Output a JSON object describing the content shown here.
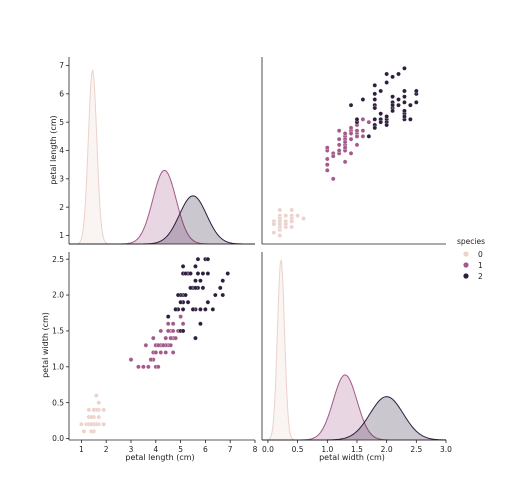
{
  "colors": {
    "species_0": "#ebd2cb",
    "species_1": "#a35a8a",
    "species_2": "#2d1e3e",
    "background": "#ffffff",
    "spine": "#222222"
  },
  "chart_data": {
    "type": "pairplot",
    "variables": [
      "petal length (cm)",
      "petal width (cm)"
    ],
    "hue": "species",
    "legend": {
      "title": "species",
      "entries": [
        "0",
        "1",
        "2"
      ],
      "placement": "right"
    },
    "grid": false,
    "panels": [
      {
        "row": 0,
        "col": 0,
        "type": "kde",
        "variable": "petal length (cm)",
        "xlim": [
          0.5,
          8
        ],
        "ylim": [
          0.7,
          7.3
        ],
        "xticks": [],
        "yticks": [
          1,
          2,
          3,
          4,
          5,
          6,
          7
        ],
        "ylabel": "petal length (cm)",
        "series": [
          {
            "species": "0",
            "peak_x": 1.45,
            "peak_y": 6.85,
            "spread": 0.17
          },
          {
            "species": "1",
            "peak_x": 4.35,
            "peak_y": 3.3,
            "spread": 0.47
          },
          {
            "species": "2",
            "peak_x": 5.5,
            "peak_y": 2.4,
            "spread": 0.55
          }
        ]
      },
      {
        "row": 0,
        "col": 1,
        "type": "scatter",
        "x_variable": "petal width (cm)",
        "y_variable": "petal length (cm)",
        "xlim": [
          -0.1,
          3.0
        ],
        "ylim": [
          0.7,
          7.3
        ],
        "xticks": [],
        "yticks": []
      },
      {
        "row": 1,
        "col": 0,
        "type": "scatter",
        "x_variable": "petal length (cm)",
        "y_variable": "petal width (cm)",
        "xlim": [
          0.5,
          8
        ],
        "ylim": [
          -0.02,
          2.6
        ],
        "xticks": [
          1,
          2,
          3,
          4,
          5,
          6,
          7,
          8
        ],
        "yticks": [
          "0.0",
          "0.5",
          "1.0",
          "1.5",
          "2.0",
          "2.5"
        ],
        "xlabel": "petal length (cm)",
        "ylabel": "petal width (cm)"
      },
      {
        "row": 1,
        "col": 1,
        "type": "kde",
        "variable": "petal width (cm)",
        "xlim": [
          -0.1,
          3.0
        ],
        "ylim": [
          0,
          2.6
        ],
        "xticks": [
          "0.0",
          "0.5",
          "1.0",
          "1.5",
          "2.0",
          "2.5",
          "3.0"
        ],
        "yticks": [],
        "xlabel": "petal width (cm)",
        "series": [
          {
            "species": "0",
            "peak_x": 0.22,
            "peak_y": 2.5,
            "spread": 0.06
          },
          {
            "species": "1",
            "peak_x": 1.3,
            "peak_y": 0.9,
            "spread": 0.2
          },
          {
            "species": "2",
            "peak_x": 2.0,
            "peak_y": 0.6,
            "spread": 0.28
          }
        ]
      }
    ],
    "points": [
      [
        1.4,
        0.2,
        0
      ],
      [
        1.4,
        0.2,
        0
      ],
      [
        1.3,
        0.2,
        0
      ],
      [
        1.5,
        0.2,
        0
      ],
      [
        1.4,
        0.2,
        0
      ],
      [
        1.7,
        0.4,
        0
      ],
      [
        1.4,
        0.3,
        0
      ],
      [
        1.5,
        0.2,
        0
      ],
      [
        1.4,
        0.2,
        0
      ],
      [
        1.5,
        0.1,
        0
      ],
      [
        1.5,
        0.2,
        0
      ],
      [
        1.6,
        0.2,
        0
      ],
      [
        1.4,
        0.1,
        0
      ],
      [
        1.1,
        0.1,
        0
      ],
      [
        1.2,
        0.2,
        0
      ],
      [
        1.5,
        0.4,
        0
      ],
      [
        1.3,
        0.4,
        0
      ],
      [
        1.4,
        0.3,
        0
      ],
      [
        1.7,
        0.3,
        0
      ],
      [
        1.5,
        0.3,
        0
      ],
      [
        1.7,
        0.2,
        0
      ],
      [
        1.5,
        0.4,
        0
      ],
      [
        1.0,
        0.2,
        0
      ],
      [
        1.7,
        0.5,
        0
      ],
      [
        1.9,
        0.2,
        0
      ],
      [
        1.6,
        0.2,
        0
      ],
      [
        1.6,
        0.4,
        0
      ],
      [
        1.5,
        0.2,
        0
      ],
      [
        1.4,
        0.2,
        0
      ],
      [
        1.6,
        0.2,
        0
      ],
      [
        1.6,
        0.2,
        0
      ],
      [
        1.5,
        0.4,
        0
      ],
      [
        1.5,
        0.1,
        0
      ],
      [
        1.4,
        0.2,
        0
      ],
      [
        1.5,
        0.2,
        0
      ],
      [
        1.2,
        0.2,
        0
      ],
      [
        1.3,
        0.2,
        0
      ],
      [
        1.4,
        0.1,
        0
      ],
      [
        1.3,
        0.2,
        0
      ],
      [
        1.5,
        0.2,
        0
      ],
      [
        1.3,
        0.3,
        0
      ],
      [
        1.3,
        0.3,
        0
      ],
      [
        1.3,
        0.2,
        0
      ],
      [
        1.6,
        0.6,
        0
      ],
      [
        1.9,
        0.4,
        0
      ],
      [
        1.4,
        0.3,
        0
      ],
      [
        1.6,
        0.2,
        0
      ],
      [
        1.4,
        0.2,
        0
      ],
      [
        1.5,
        0.2,
        0
      ],
      [
        1.4,
        0.2,
        0
      ],
      [
        4.7,
        1.4,
        1
      ],
      [
        4.5,
        1.5,
        1
      ],
      [
        4.9,
        1.5,
        1
      ],
      [
        4.0,
        1.3,
        1
      ],
      [
        4.6,
        1.5,
        1
      ],
      [
        4.5,
        1.3,
        1
      ],
      [
        4.7,
        1.6,
        1
      ],
      [
        3.3,
        1.0,
        1
      ],
      [
        4.6,
        1.3,
        1
      ],
      [
        3.9,
        1.4,
        1
      ],
      [
        3.5,
        1.0,
        1
      ],
      [
        4.2,
        1.5,
        1
      ],
      [
        4.0,
        1.0,
        1
      ],
      [
        4.7,
        1.4,
        1
      ],
      [
        3.6,
        1.3,
        1
      ],
      [
        4.4,
        1.4,
        1
      ],
      [
        4.5,
        1.5,
        1
      ],
      [
        4.1,
        1.0,
        1
      ],
      [
        4.5,
        1.5,
        1
      ],
      [
        3.9,
        1.1,
        1
      ],
      [
        4.8,
        1.8,
        1
      ],
      [
        4.0,
        1.3,
        1
      ],
      [
        4.9,
        1.5,
        1
      ],
      [
        4.7,
        1.2,
        1
      ],
      [
        4.3,
        1.3,
        1
      ],
      [
        4.4,
        1.4,
        1
      ],
      [
        4.8,
        1.4,
        1
      ],
      [
        5.0,
        1.7,
        1
      ],
      [
        4.5,
        1.5,
        1
      ],
      [
        3.5,
        1.0,
        1
      ],
      [
        3.8,
        1.1,
        1
      ],
      [
        3.7,
        1.0,
        1
      ],
      [
        3.9,
        1.2,
        1
      ],
      [
        5.1,
        1.6,
        1
      ],
      [
        4.5,
        1.5,
        1
      ],
      [
        4.5,
        1.6,
        1
      ],
      [
        4.7,
        1.5,
        1
      ],
      [
        4.4,
        1.3,
        1
      ],
      [
        4.1,
        1.3,
        1
      ],
      [
        4.0,
        1.3,
        1
      ],
      [
        4.4,
        1.2,
        1
      ],
      [
        4.6,
        1.4,
        1
      ],
      [
        4.0,
        1.2,
        1
      ],
      [
        3.3,
        1.0,
        1
      ],
      [
        4.2,
        1.3,
        1
      ],
      [
        4.2,
        1.2,
        1
      ],
      [
        4.2,
        1.3,
        1
      ],
      [
        4.3,
        1.3,
        1
      ],
      [
        3.0,
        1.1,
        1
      ],
      [
        4.1,
        1.3,
        1
      ],
      [
        6.0,
        2.5,
        2
      ],
      [
        5.1,
        1.9,
        2
      ],
      [
        5.9,
        2.1,
        2
      ],
      [
        5.6,
        1.8,
        2
      ],
      [
        5.8,
        2.2,
        2
      ],
      [
        6.6,
        2.1,
        2
      ],
      [
        4.5,
        1.7,
        2
      ],
      [
        6.3,
        1.8,
        2
      ],
      [
        5.8,
        1.8,
        2
      ],
      [
        6.1,
        2.5,
        2
      ],
      [
        5.1,
        2.0,
        2
      ],
      [
        5.3,
        1.9,
        2
      ],
      [
        5.5,
        2.1,
        2
      ],
      [
        5.0,
        2.0,
        2
      ],
      [
        5.1,
        2.4,
        2
      ],
      [
        5.3,
        2.3,
        2
      ],
      [
        5.5,
        1.8,
        2
      ],
      [
        6.7,
        2.2,
        2
      ],
      [
        6.9,
        2.3,
        2
      ],
      [
        5.0,
        1.5,
        2
      ],
      [
        5.7,
        2.3,
        2
      ],
      [
        4.9,
        2.0,
        2
      ],
      [
        6.7,
        2.0,
        2
      ],
      [
        4.9,
        1.8,
        2
      ],
      [
        5.7,
        2.1,
        2
      ],
      [
        6.0,
        1.8,
        2
      ],
      [
        4.8,
        1.8,
        2
      ],
      [
        4.9,
        1.8,
        2
      ],
      [
        5.6,
        2.1,
        2
      ],
      [
        5.8,
        1.6,
        2
      ],
      [
        6.1,
        1.9,
        2
      ],
      [
        6.4,
        2.0,
        2
      ],
      [
        5.6,
        2.2,
        2
      ],
      [
        5.1,
        1.5,
        2
      ],
      [
        5.6,
        1.4,
        2
      ],
      [
        6.1,
        2.3,
        2
      ],
      [
        5.6,
        2.4,
        2
      ],
      [
        5.5,
        1.8,
        2
      ],
      [
        4.8,
        1.8,
        2
      ],
      [
        5.4,
        2.1,
        2
      ],
      [
        5.6,
        2.4,
        2
      ],
      [
        5.1,
        2.3,
        2
      ],
      [
        5.1,
        1.9,
        2
      ],
      [
        5.9,
        2.3,
        2
      ],
      [
        5.7,
        2.5,
        2
      ],
      [
        5.2,
        2.3,
        2
      ],
      [
        5.0,
        1.9,
        2
      ],
      [
        5.2,
        2.0,
        2
      ],
      [
        5.4,
        2.3,
        2
      ],
      [
        5.1,
        1.8,
        2
      ]
    ]
  }
}
